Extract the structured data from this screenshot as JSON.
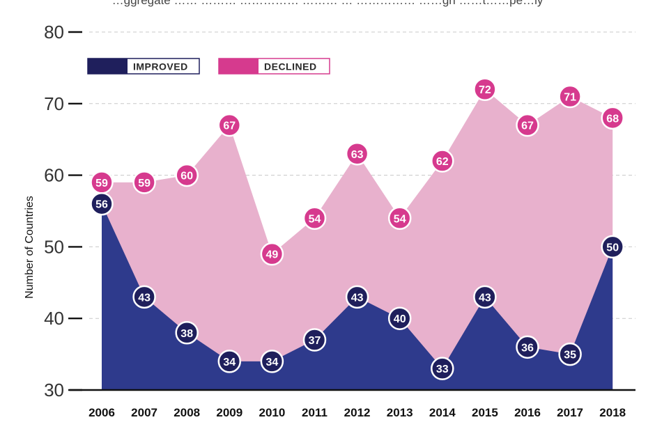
{
  "chart_data": {
    "type": "area",
    "title_fragment": "…ggregate …… ……… …………… ……… … …………… ……gh ……t……pe…ly",
    "ylabel": "Number of Countries",
    "xlabel": "",
    "ylim": [
      30,
      80
    ],
    "yticks": [
      30,
      40,
      50,
      60,
      70,
      80
    ],
    "grid": true,
    "legend_position": "top-left",
    "categories": [
      "2006",
      "2007",
      "2008",
      "2009",
      "2010",
      "2011",
      "2012",
      "2013",
      "2014",
      "2015",
      "2016",
      "2017",
      "2018"
    ],
    "series": [
      {
        "name": "DECLINED",
        "color": "#d63a8e",
        "fill": "#e8b1cd",
        "values": [
          59,
          59,
          60,
          67,
          49,
          54,
          63,
          54,
          62,
          72,
          67,
          71,
          68
        ]
      },
      {
        "name": "IMPROVED",
        "color": "#1f1f5c",
        "fill": "#2e3a8c",
        "values": [
          56,
          43,
          38,
          34,
          34,
          37,
          43,
          40,
          33,
          43,
          36,
          35,
          50
        ]
      }
    ]
  }
}
